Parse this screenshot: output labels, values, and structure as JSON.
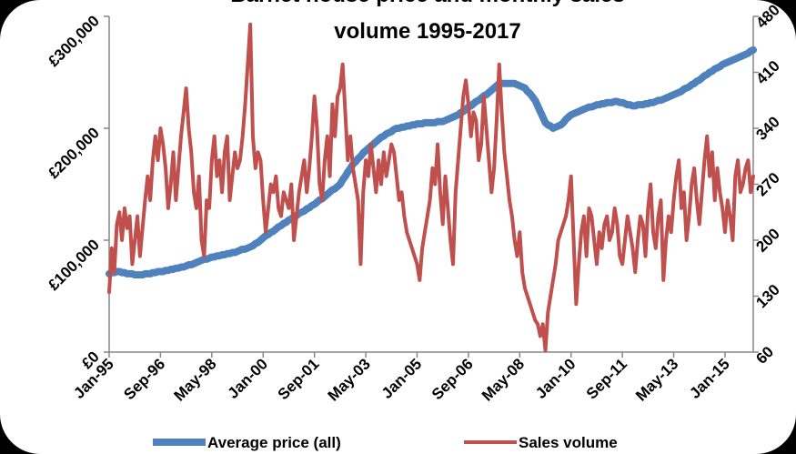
{
  "chart_data": {
    "type": "line",
    "title": [
      "Barnet house price and monthly sales",
      "volume 1995-2017"
    ],
    "categories": [
      "Jan-95",
      null,
      null,
      null,
      null,
      null,
      null,
      null,
      null,
      null,
      null,
      null,
      null,
      null,
      null,
      null,
      null,
      null,
      null,
      null,
      "Sep-96",
      null,
      null,
      null,
      null,
      null,
      null,
      null,
      null,
      null,
      null,
      null,
      null,
      null,
      null,
      null,
      null,
      null,
      null,
      null,
      "May-98",
      null,
      null,
      null,
      null,
      null,
      null,
      null,
      null,
      null,
      null,
      null,
      null,
      null,
      null,
      null,
      null,
      null,
      null,
      null,
      "Jan-00",
      null,
      null,
      null,
      null,
      null,
      null,
      null,
      null,
      null,
      null,
      null,
      null,
      null,
      null,
      null,
      null,
      null,
      null,
      null,
      "Sep-01",
      null,
      null,
      null,
      null,
      null,
      null,
      null,
      null,
      null,
      null,
      null,
      null,
      null,
      null,
      null,
      null,
      null,
      null,
      null,
      "May-03",
      null,
      null,
      null,
      null,
      null,
      null,
      null,
      null,
      null,
      null,
      null,
      null,
      null,
      null,
      null,
      null,
      null,
      null,
      null,
      "Jan-05",
      null,
      null,
      null,
      null,
      null,
      null,
      null,
      null,
      null,
      null,
      null,
      null,
      null,
      null,
      null,
      null,
      null,
      null,
      null,
      "Sep-06",
      null,
      null,
      null,
      null,
      null,
      null,
      null,
      null,
      null,
      null,
      null,
      null,
      null,
      null,
      null,
      null,
      null,
      null,
      null,
      "May-08",
      null,
      null,
      null,
      null,
      null,
      null,
      null,
      null,
      null,
      null,
      null,
      null,
      null,
      null,
      null,
      null,
      null,
      null,
      null,
      "Jan-10",
      null,
      null,
      null,
      null,
      null,
      null,
      null,
      null,
      null,
      null,
      null,
      null,
      null,
      null,
      null,
      null,
      null,
      null,
      null,
      "Sep-11",
      null,
      null,
      null,
      null,
      null,
      null,
      null,
      null,
      null,
      null,
      null,
      null,
      null,
      null,
      null,
      null,
      null,
      null,
      null,
      "May-13",
      null,
      null,
      null,
      null,
      null,
      null,
      null,
      null,
      null,
      null,
      null,
      null,
      null,
      null,
      null,
      null,
      null,
      null,
      null,
      "Jan-15",
      null,
      null,
      null,
      null,
      null,
      null,
      null,
      null,
      null,
      null,
      null
    ],
    "series": [
      {
        "name": "Average price (all)",
        "color": "#4f81bd",
        "values": [
          70000,
          71000,
          71000,
          72000,
          72000,
          71000,
          71000,
          70000,
          70000,
          70000,
          69000,
          69000,
          69000,
          69000,
          70000,
          70000,
          70000,
          71000,
          71000,
          72000,
          72000,
          72000,
          73000,
          73000,
          74000,
          74000,
          75000,
          75000,
          76000,
          76000,
          77000,
          78000,
          78000,
          79000,
          80000,
          81000,
          82000,
          83000,
          83000,
          84000,
          85000,
          85000,
          86000,
          86000,
          87000,
          87000,
          88000,
          88000,
          89000,
          89000,
          90000,
          91000,
          92000,
          92000,
          93000,
          94000,
          95000,
          97000,
          98000,
          100000,
          102000,
          104000,
          105000,
          107000,
          108000,
          110000,
          112000,
          113000,
          115000,
          116000,
          118000,
          119000,
          121000,
          122000,
          124000,
          125000,
          126000,
          128000,
          129000,
          131000,
          132000,
          134000,
          136000,
          137000,
          139000,
          141000,
          143000,
          145000,
          146000,
          148000,
          150000,
          154000,
          157000,
          161000,
          164000,
          168000,
          170000,
          173000,
          175000,
          178000,
          180000,
          182000,
          184000,
          186000,
          188000,
          190000,
          192000,
          193000,
          195000,
          196000,
          197000,
          199000,
          200000,
          200000,
          201000,
          201000,
          202000,
          202000,
          203000,
          203000,
          204000,
          204000,
          204000,
          205000,
          205000,
          205000,
          205000,
          205000,
          206000,
          206000,
          206000,
          207000,
          208000,
          209000,
          210000,
          211000,
          212000,
          214000,
          215000,
          217000,
          219000,
          220000,
          222000,
          224000,
          225000,
          227000,
          229000,
          230000,
          232000,
          234000,
          236000,
          238000,
          240000,
          240000,
          240000,
          240000,
          240000,
          240000,
          240000,
          239000,
          238000,
          237000,
          236000,
          233000,
          231000,
          228000,
          225000,
          220000,
          215000,
          210000,
          205000,
          203000,
          202000,
          200000,
          201000,
          202000,
          203000,
          205000,
          208000,
          210000,
          212000,
          213000,
          214000,
          215000,
          216000,
          217000,
          218000,
          219000,
          219000,
          220000,
          221000,
          221000,
          222000,
          222000,
          223000,
          223000,
          223000,
          224000,
          224000,
          223000,
          223000,
          222000,
          221000,
          221000,
          220000,
          220000,
          221000,
          221000,
          221000,
          222000,
          222000,
          223000,
          223000,
          224000,
          225000,
          225000,
          226000,
          227000,
          228000,
          229000,
          230000,
          231000,
          232000,
          233000,
          235000,
          236000,
          237000,
          239000,
          240000,
          242000,
          243000,
          245000,
          247000,
          248000,
          250000,
          251000,
          253000,
          254000,
          255000,
          257000,
          258000,
          259000,
          260000,
          261000,
          262000,
          263000,
          264000,
          265000,
          266000,
          267000,
          269000,
          270000
        ]
      },
      {
        "name": "Sales volume",
        "color": "#c0504d",
        "axis": "y2",
        "values": [
          135,
          190,
          160,
          220,
          235,
          200,
          240,
          215,
          230,
          170,
          200,
          230,
          180,
          215,
          250,
          280,
          250,
          300,
          330,
          300,
          340,
          320,
          290,
          240,
          270,
          310,
          250,
          290,
          330,
          360,
          390,
          340,
          310,
          260,
          240,
          280,
          200,
          180,
          250,
          240,
          300,
          330,
          280,
          300,
          260,
          310,
          330,
          250,
          280,
          310,
          290,
          300,
          330,
          370,
          420,
          470,
          330,
          290,
          310,
          300,
          250,
          210,
          240,
          270,
          260,
          280,
          240,
          230,
          260,
          250,
          240,
          270,
          200,
          230,
          260,
          280,
          300,
          260,
          290,
          330,
          380,
          340,
          270,
          250,
          300,
          330,
          280,
          370,
          330,
          380,
          390,
          420,
          360,
          300,
          330,
          290,
          270,
          250,
          170,
          260,
          300,
          280,
          320,
          290,
          260,
          300,
          270,
          310,
          280,
          300,
          320,
          310,
          280,
          250,
          260,
          230,
          210,
          200,
          190,
          180,
          170,
          150,
          190,
          210,
          230,
          250,
          290,
          270,
          320,
          260,
          220,
          280,
          240,
          200,
          170,
          260,
          300,
          340,
          380,
          400,
          370,
          330,
          360,
          350,
          300,
          320,
          380,
          340,
          300,
          260,
          290,
          350,
          420,
          360,
          310,
          280,
          250,
          230,
          200,
          180,
          210,
          160,
          140,
          130,
          120,
          110,
          100,
          95,
          80,
          95,
          62,
          110,
          130,
          150,
          170,
          200,
          210,
          220,
          230,
          250,
          280,
          200,
          120,
          170,
          210,
          230,
          180,
          240,
          230,
          200,
          170,
          210,
          190,
          220,
          230,
          200,
          210,
          240,
          220,
          180,
          170,
          200,
          230,
          210,
          190,
          160,
          200,
          230,
          220,
          180,
          240,
          270,
          210,
          190,
          230,
          250,
          150,
          200,
          230,
          210,
          250,
          280,
          300,
          240,
          260,
          200,
          230,
          270,
          290,
          250,
          220,
          260,
          300,
          330,
          280,
          310,
          250,
          290,
          260,
          240,
          210,
          250,
          230,
          200,
          280,
          300,
          260,
          270,
          290,
          300,
          260,
          280
        ]
      }
    ],
    "ylim": [
      0,
      300000
    ],
    "yticks": [
      {
        "value": 0,
        "label": "£0"
      },
      {
        "value": 100000,
        "label": "£100,000"
      },
      {
        "value": 200000,
        "label": "£200,000"
      },
      {
        "value": 300000,
        "label": "£300,000"
      }
    ],
    "y2lim": [
      60,
      480
    ],
    "y2ticks": [
      60,
      130,
      200,
      270,
      340,
      410,
      480
    ],
    "grid": false,
    "legend": "bottom"
  }
}
